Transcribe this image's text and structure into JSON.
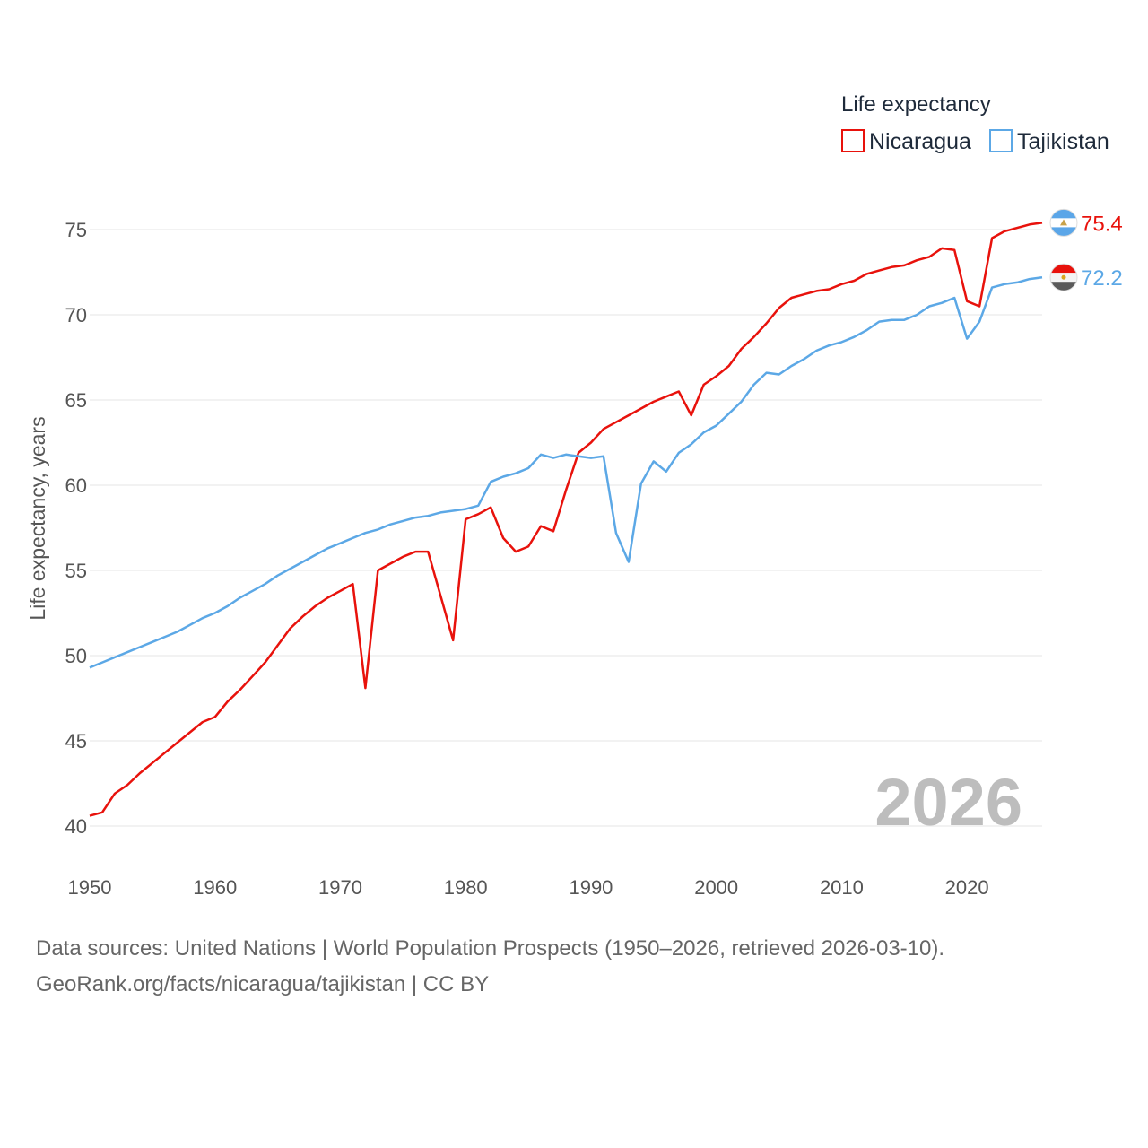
{
  "chart_data": {
    "type": "line",
    "legend_title": "Life expectancy",
    "ylabel": "Life expectancy, years",
    "xlabel": "",
    "xlim": [
      1950,
      2026
    ],
    "ylim": [
      40,
      77
    ],
    "x_ticks": [
      1950,
      1960,
      1970,
      1980,
      1990,
      2000,
      2010,
      2020
    ],
    "y_ticks": [
      40,
      45,
      50,
      55,
      60,
      65,
      70,
      75
    ],
    "year_label": "2026",
    "series": [
      {
        "name": "Nicaragua",
        "color": "#e8120c",
        "end_value": "75.4",
        "flag_icon": "nicaragua-flag-icon",
        "points": [
          [
            1950,
            40.6
          ],
          [
            1951,
            40.8
          ],
          [
            1952,
            41.9
          ],
          [
            1953,
            42.4
          ],
          [
            1954,
            43.1
          ],
          [
            1955,
            43.7
          ],
          [
            1956,
            44.3
          ],
          [
            1957,
            44.9
          ],
          [
            1958,
            45.5
          ],
          [
            1959,
            46.1
          ],
          [
            1960,
            46.4
          ],
          [
            1961,
            47.3
          ],
          [
            1962,
            48.0
          ],
          [
            1963,
            48.8
          ],
          [
            1964,
            49.6
          ],
          [
            1965,
            50.6
          ],
          [
            1966,
            51.6
          ],
          [
            1967,
            52.3
          ],
          [
            1968,
            52.9
          ],
          [
            1969,
            53.4
          ],
          [
            1970,
            53.8
          ],
          [
            1971,
            54.2
          ],
          [
            1972,
            48.1
          ],
          [
            1973,
            55.0
          ],
          [
            1974,
            55.4
          ],
          [
            1975,
            55.8
          ],
          [
            1976,
            56.1
          ],
          [
            1977,
            56.1
          ],
          [
            1978,
            53.5
          ],
          [
            1979,
            50.9
          ],
          [
            1980,
            58.0
          ],
          [
            1981,
            58.3
          ],
          [
            1982,
            58.7
          ],
          [
            1983,
            56.9
          ],
          [
            1984,
            56.1
          ],
          [
            1985,
            56.4
          ],
          [
            1986,
            57.6
          ],
          [
            1987,
            57.3
          ],
          [
            1988,
            59.7
          ],
          [
            1989,
            61.9
          ],
          [
            1990,
            62.5
          ],
          [
            1991,
            63.3
          ],
          [
            1992,
            63.7
          ],
          [
            1993,
            64.1
          ],
          [
            1994,
            64.5
          ],
          [
            1995,
            64.9
          ],
          [
            1996,
            65.2
          ],
          [
            1997,
            65.5
          ],
          [
            1998,
            64.1
          ],
          [
            1999,
            65.9
          ],
          [
            2000,
            66.4
          ],
          [
            2001,
            67.0
          ],
          [
            2002,
            68.0
          ],
          [
            2003,
            68.7
          ],
          [
            2004,
            69.5
          ],
          [
            2005,
            70.4
          ],
          [
            2006,
            71.0
          ],
          [
            2007,
            71.2
          ],
          [
            2008,
            71.4
          ],
          [
            2009,
            71.5
          ],
          [
            2010,
            71.8
          ],
          [
            2011,
            72.0
          ],
          [
            2012,
            72.4
          ],
          [
            2013,
            72.6
          ],
          [
            2014,
            72.8
          ],
          [
            2015,
            72.9
          ],
          [
            2016,
            73.2
          ],
          [
            2017,
            73.4
          ],
          [
            2018,
            73.9
          ],
          [
            2019,
            73.8
          ],
          [
            2020,
            70.8
          ],
          [
            2021,
            70.5
          ],
          [
            2022,
            74.5
          ],
          [
            2023,
            74.9
          ],
          [
            2024,
            75.1
          ],
          [
            2025,
            75.3
          ],
          [
            2026,
            75.4
          ]
        ]
      },
      {
        "name": "Tajikistan",
        "color": "#5ca8e6",
        "end_value": "72.2",
        "flag_icon": "tajikistan-flag-icon",
        "points": [
          [
            1950,
            49.3
          ],
          [
            1951,
            49.6
          ],
          [
            1952,
            49.9
          ],
          [
            1953,
            50.2
          ],
          [
            1954,
            50.5
          ],
          [
            1955,
            50.8
          ],
          [
            1956,
            51.1
          ],
          [
            1957,
            51.4
          ],
          [
            1958,
            51.8
          ],
          [
            1959,
            52.2
          ],
          [
            1960,
            52.5
          ],
          [
            1961,
            52.9
          ],
          [
            1962,
            53.4
          ],
          [
            1963,
            53.8
          ],
          [
            1964,
            54.2
          ],
          [
            1965,
            54.7
          ],
          [
            1966,
            55.1
          ],
          [
            1967,
            55.5
          ],
          [
            1968,
            55.9
          ],
          [
            1969,
            56.3
          ],
          [
            1970,
            56.6
          ],
          [
            1971,
            56.9
          ],
          [
            1972,
            57.2
          ],
          [
            1973,
            57.4
          ],
          [
            1974,
            57.7
          ],
          [
            1975,
            57.9
          ],
          [
            1976,
            58.1
          ],
          [
            1977,
            58.2
          ],
          [
            1978,
            58.4
          ],
          [
            1979,
            58.5
          ],
          [
            1980,
            58.6
          ],
          [
            1981,
            58.8
          ],
          [
            1982,
            60.2
          ],
          [
            1983,
            60.5
          ],
          [
            1984,
            60.7
          ],
          [
            1985,
            61.0
          ],
          [
            1986,
            61.8
          ],
          [
            1987,
            61.6
          ],
          [
            1988,
            61.8
          ],
          [
            1989,
            61.7
          ],
          [
            1990,
            61.6
          ],
          [
            1991,
            61.7
          ],
          [
            1992,
            57.2
          ],
          [
            1993,
            55.5
          ],
          [
            1994,
            60.1
          ],
          [
            1995,
            61.4
          ],
          [
            1996,
            60.8
          ],
          [
            1997,
            61.9
          ],
          [
            1998,
            62.4
          ],
          [
            1999,
            63.1
          ],
          [
            2000,
            63.5
          ],
          [
            2001,
            64.2
          ],
          [
            2002,
            64.9
          ],
          [
            2003,
            65.9
          ],
          [
            2004,
            66.6
          ],
          [
            2005,
            66.5
          ],
          [
            2006,
            67.0
          ],
          [
            2007,
            67.4
          ],
          [
            2008,
            67.9
          ],
          [
            2009,
            68.2
          ],
          [
            2010,
            68.4
          ],
          [
            2011,
            68.7
          ],
          [
            2012,
            69.1
          ],
          [
            2013,
            69.6
          ],
          [
            2014,
            69.7
          ],
          [
            2015,
            69.7
          ],
          [
            2016,
            70.0
          ],
          [
            2017,
            70.5
          ],
          [
            2018,
            70.7
          ],
          [
            2019,
            71.0
          ],
          [
            2020,
            68.6
          ],
          [
            2021,
            69.6
          ],
          [
            2022,
            71.6
          ],
          [
            2023,
            71.8
          ],
          [
            2024,
            71.9
          ],
          [
            2025,
            72.1
          ],
          [
            2026,
            72.2
          ]
        ]
      }
    ]
  },
  "footer": {
    "sources": "Data sources: United Nations | World Population Prospects (1950–2026, retrieved 2026-03-10).",
    "link": "GeoRank.org/facts/nicaragua/tajikistan | CC BY"
  }
}
